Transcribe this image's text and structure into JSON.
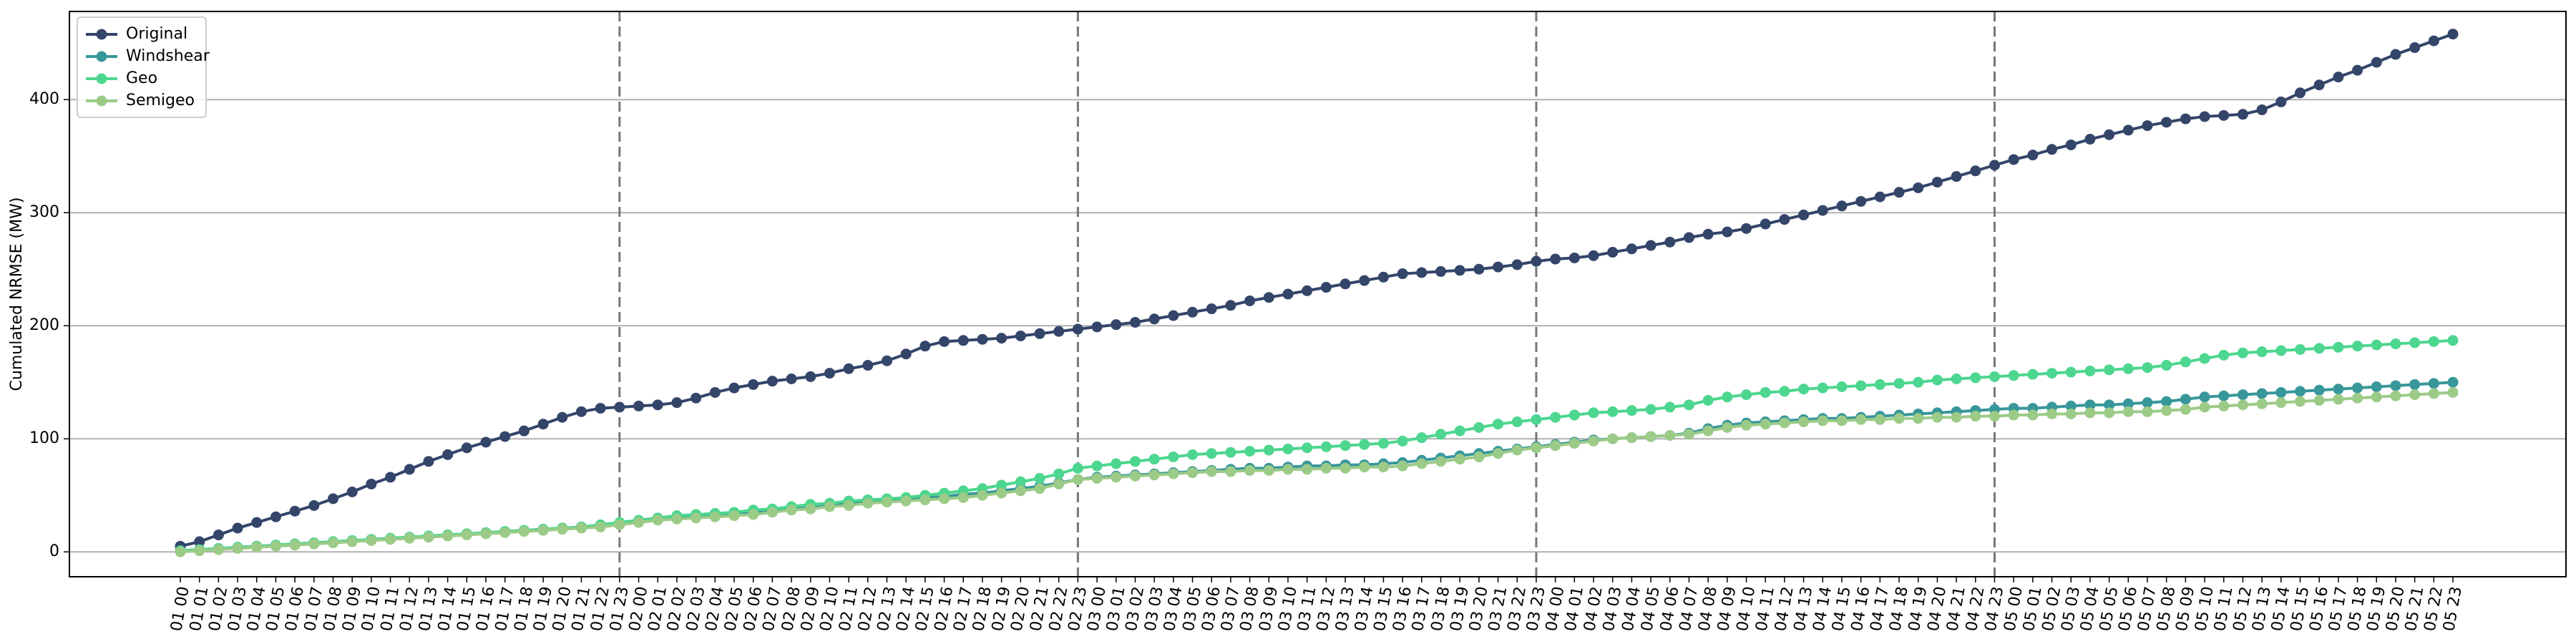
{
  "chart_data": {
    "type": "line",
    "y_label": "Cumulated NRMSE (MW)",
    "categories": [
      "01 00",
      "01 01",
      "01 02",
      "01 03",
      "01 04",
      "01 05",
      "01 06",
      "01 07",
      "01 08",
      "01 09",
      "01 10",
      "01 11",
      "01 12",
      "01 13",
      "01 14",
      "01 15",
      "01 16",
      "01 17",
      "01 18",
      "01 19",
      "01 20",
      "01 21",
      "01 22",
      "01 23",
      "02 00",
      "02 01",
      "02 02",
      "02 03",
      "02 04",
      "02 05",
      "02 06",
      "02 07",
      "02 08",
      "02 09",
      "02 10",
      "02 11",
      "02 12",
      "02 13",
      "02 14",
      "02 15",
      "02 16",
      "02 17",
      "02 18",
      "02 19",
      "02 20",
      "02 21",
      "02 22",
      "02 23",
      "03 00",
      "03 01",
      "03 02",
      "03 03",
      "03 04",
      "03 05",
      "03 06",
      "03 07",
      "03 08",
      "03 09",
      "03 10",
      "03 11",
      "03 12",
      "03 13",
      "03 14",
      "03 15",
      "03 16",
      "03 17",
      "03 18",
      "03 19",
      "03 20",
      "03 21",
      "03 22",
      "03 23",
      "04 00",
      "04 01",
      "04 02",
      "04 03",
      "04 04",
      "04 05",
      "04 06",
      "04 07",
      "04 08",
      "04 09",
      "04 10",
      "04 11",
      "04 12",
      "04 13",
      "04 14",
      "04 15",
      "04 16",
      "04 17",
      "04 18",
      "04 19",
      "04 20",
      "04 21",
      "04 22",
      "04 23",
      "05 00",
      "05 01",
      "05 02",
      "05 03",
      "05 04",
      "05 05",
      "05 06",
      "05 07",
      "05 08",
      "05 09",
      "05 10",
      "05 11",
      "05 12",
      "05 13",
      "05 14",
      "05 15",
      "05 16",
      "05 17",
      "05 18",
      "05 19",
      "05 20",
      "05 21",
      "05 22",
      "05 23"
    ],
    "series": [
      {
        "name": "Original",
        "color": "#34456a",
        "values": [
          5,
          9,
          15,
          21,
          26,
          31,
          36,
          41,
          47,
          53,
          60,
          66,
          73,
          80,
          86,
          92,
          97,
          102,
          107,
          113,
          119,
          124,
          127,
          128,
          129,
          130,
          132,
          136,
          141,
          145,
          148,
          151,
          153,
          155,
          158,
          162,
          165,
          169,
          175,
          182,
          186,
          187,
          188,
          189,
          191,
          193,
          195,
          197,
          199,
          201,
          203,
          206,
          209,
          212,
          215,
          218,
          222,
          225,
          228,
          231,
          234,
          237,
          240,
          243,
          246,
          247,
          248,
          249,
          250,
          252,
          254,
          257,
          259,
          260,
          262,
          265,
          268,
          271,
          274,
          278,
          281,
          283,
          286,
          290,
          294,
          298,
          302,
          306,
          310,
          314,
          318,
          322,
          327,
          332,
          337,
          342,
          347,
          351,
          356,
          360,
          365,
          369,
          373,
          377,
          380,
          383,
          385,
          386,
          387,
          391,
          398,
          406,
          413,
          420,
          426,
          433,
          440,
          446,
          452,
          458
        ]
      },
      {
        "name": "Windshear",
        "color": "#38979a",
        "values": [
          1,
          2,
          3,
          4,
          5,
          6,
          7,
          8,
          9,
          10,
          11,
          12,
          13,
          14,
          15,
          16,
          17,
          18,
          19,
          20,
          21,
          22,
          23,
          25,
          27,
          29,
          31,
          32,
          33,
          34,
          35,
          36,
          38,
          39,
          41,
          43,
          44,
          46,
          47,
          48,
          49,
          51,
          52,
          54,
          56,
          58,
          61,
          64,
          66,
          67,
          68,
          69,
          70,
          71,
          72,
          73,
          74,
          74,
          75,
          76,
          76,
          77,
          77,
          78,
          79,
          81,
          83,
          85,
          87,
          89,
          91,
          93,
          95,
          97,
          99,
          100,
          101,
          102,
          103,
          105,
          109,
          112,
          114,
          115,
          116,
          117,
          118,
          118,
          119,
          120,
          121,
          122,
          123,
          124,
          125,
          126,
          127,
          127,
          128,
          129,
          130,
          130,
          131,
          132,
          133,
          135,
          137,
          138,
          139,
          140,
          141,
          142,
          143,
          144,
          145,
          146,
          147,
          148,
          149,
          150
        ]
      },
      {
        "name": "Geo",
        "color": "#4dd68f",
        "values": [
          1,
          2,
          3,
          4,
          5,
          6,
          7,
          8,
          9,
          10,
          11,
          12,
          13,
          14,
          15,
          16,
          17,
          18,
          19,
          20,
          21,
          22,
          24,
          26,
          28,
          30,
          32,
          33,
          34,
          35,
          37,
          38,
          40,
          42,
          43,
          45,
          46,
          47,
          48,
          50,
          52,
          54,
          56,
          59,
          62,
          65,
          69,
          74,
          76,
          78,
          80,
          82,
          84,
          86,
          87,
          88,
          89,
          90,
          91,
          92,
          93,
          94,
          95,
          96,
          98,
          101,
          104,
          107,
          110,
          113,
          115,
          117,
          119,
          121,
          123,
          124,
          125,
          126,
          128,
          130,
          134,
          137,
          139,
          141,
          142,
          144,
          145,
          146,
          147,
          148,
          149,
          150,
          152,
          153,
          154,
          155,
          156,
          157,
          158,
          159,
          160,
          161,
          162,
          163,
          165,
          168,
          171,
          174,
          176,
          177,
          178,
          179,
          180,
          181,
          182,
          183,
          184,
          185,
          186,
          187
        ]
      },
      {
        "name": "Semigeo",
        "color": "#9ccb88",
        "values": [
          0,
          1,
          2,
          3,
          4,
          5,
          6,
          7,
          8,
          9,
          10,
          11,
          12,
          13,
          14,
          15,
          16,
          17,
          18,
          19,
          20,
          21,
          22,
          24,
          26,
          28,
          29,
          30,
          31,
          32,
          33,
          35,
          37,
          38,
          40,
          41,
          43,
          44,
          45,
          46,
          47,
          48,
          50,
          52,
          54,
          56,
          60,
          64,
          65,
          66,
          67,
          68,
          69,
          70,
          71,
          71,
          72,
          72,
          73,
          73,
          74,
          74,
          75,
          75,
          76,
          78,
          80,
          82,
          84,
          87,
          90,
          92,
          94,
          96,
          98,
          100,
          101,
          102,
          103,
          104,
          107,
          110,
          112,
          113,
          114,
          115,
          116,
          116,
          117,
          117,
          118,
          118,
          119,
          119,
          120,
          120,
          121,
          121,
          122,
          122,
          123,
          123,
          124,
          124,
          125,
          126,
          128,
          129,
          130,
          131,
          132,
          133,
          134,
          135,
          136,
          137,
          138,
          139,
          140,
          141
        ]
      }
    ],
    "vlines": [
      "01 23",
      "02 23",
      "03 23",
      "04 23"
    ],
    "ylim": [
      -22,
      478
    ],
    "yticks": [
      0,
      100,
      200,
      300,
      400
    ],
    "grid": true,
    "legend": "upper left"
  }
}
